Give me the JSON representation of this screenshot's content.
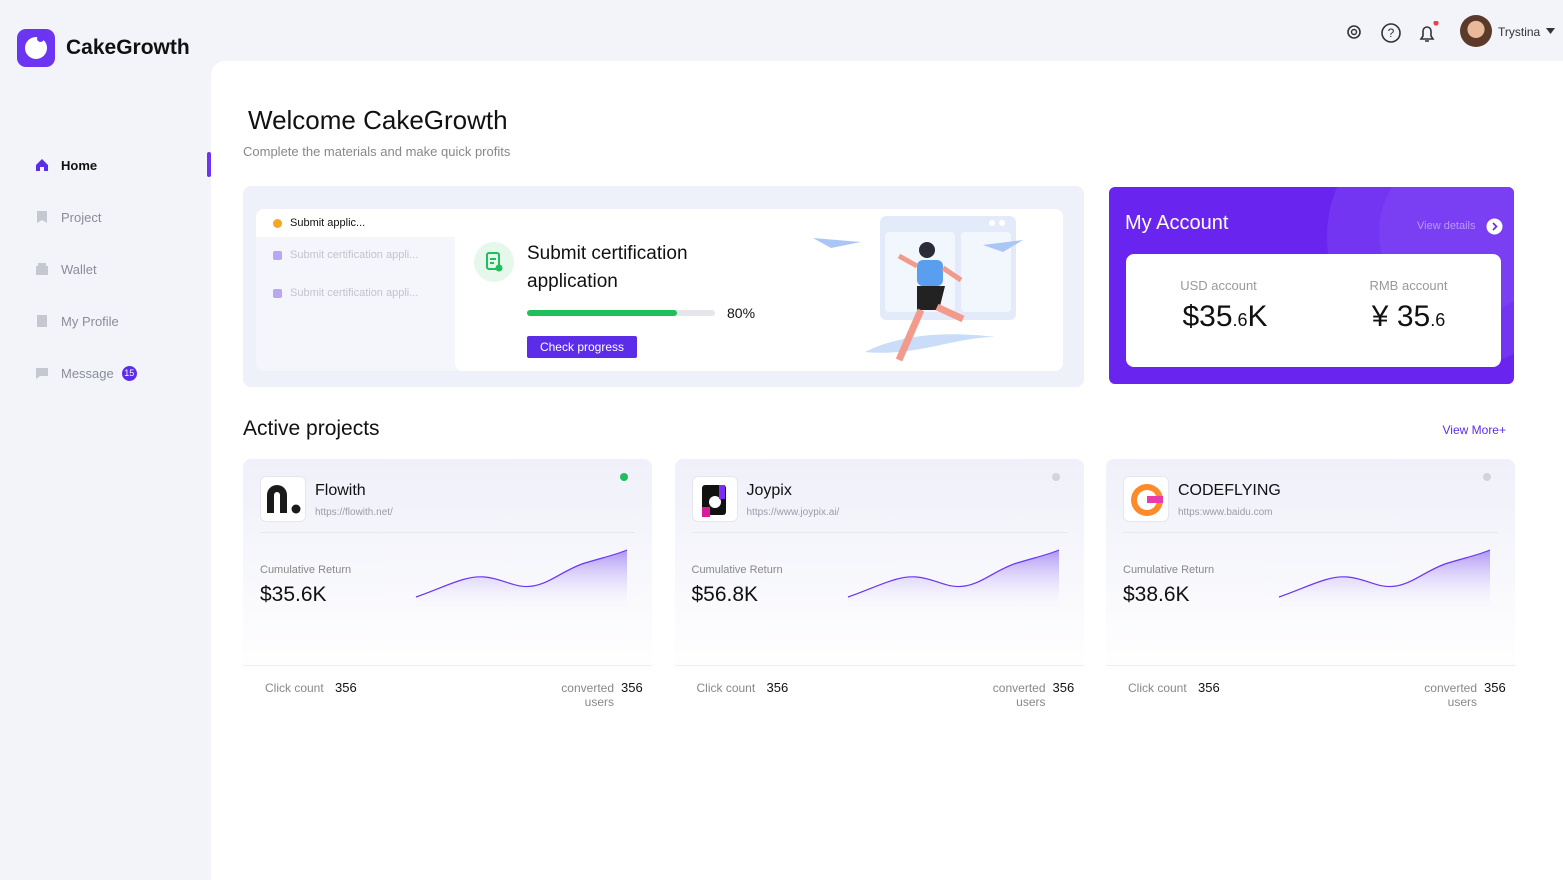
{
  "header": {
    "brand": "CakeGrowth",
    "user": "Trystina"
  },
  "sidebar": {
    "nav": [
      "Home",
      "Project",
      "Wallet",
      "My Profile",
      "Message"
    ],
    "active": 0,
    "message_badge": 15
  },
  "welcome": {
    "title": "Welcome CakeGrowth",
    "subtitle": "Complete the materials and make quick profits"
  },
  "tasks": {
    "steps": [
      "Submit  applic...",
      "Submit certification appli...",
      "Submit certification appli..."
    ],
    "title_lines": [
      "Submit certification",
      "application"
    ],
    "progress": {
      "value": 80,
      "label": "80%"
    },
    "button": "Check progress"
  },
  "account": {
    "title": "My Account",
    "link": "View details",
    "usd": {
      "label": "USD account",
      "main": "$35",
      "decimal": ".6",
      "suffix": "K"
    },
    "rmb": {
      "label": "RMB account",
      "main": "¥ 35",
      "decimal": ".6"
    }
  },
  "projects": {
    "title": "Active projects",
    "more": "View More+",
    "items": [
      {
        "name": "Flowith",
        "url": "https://flowith.net/",
        "active": true,
        "return_label": "Cumulative Return",
        "return_value": "$35.6K",
        "click_label": "Click count",
        "click_count": 356,
        "users_label": "converted users",
        "users_count": 356
      },
      {
        "name": "Joypix",
        "url": "https://www.joypix.ai/",
        "active": false,
        "return_label": "Cumulative Return",
        "return_value": "$56.8K",
        "click_label": "Click count",
        "click_count": 356,
        "users_label": "converted users",
        "users_count": 356
      },
      {
        "name": "CODEFLYING",
        "url": "https:www.baidu.com",
        "active": false,
        "return_label": "Cumulative Return",
        "return_value": "$38.6K",
        "click_label": "Click count",
        "click_count": 356,
        "users_label": "converted users",
        "users_count": 356
      }
    ]
  }
}
